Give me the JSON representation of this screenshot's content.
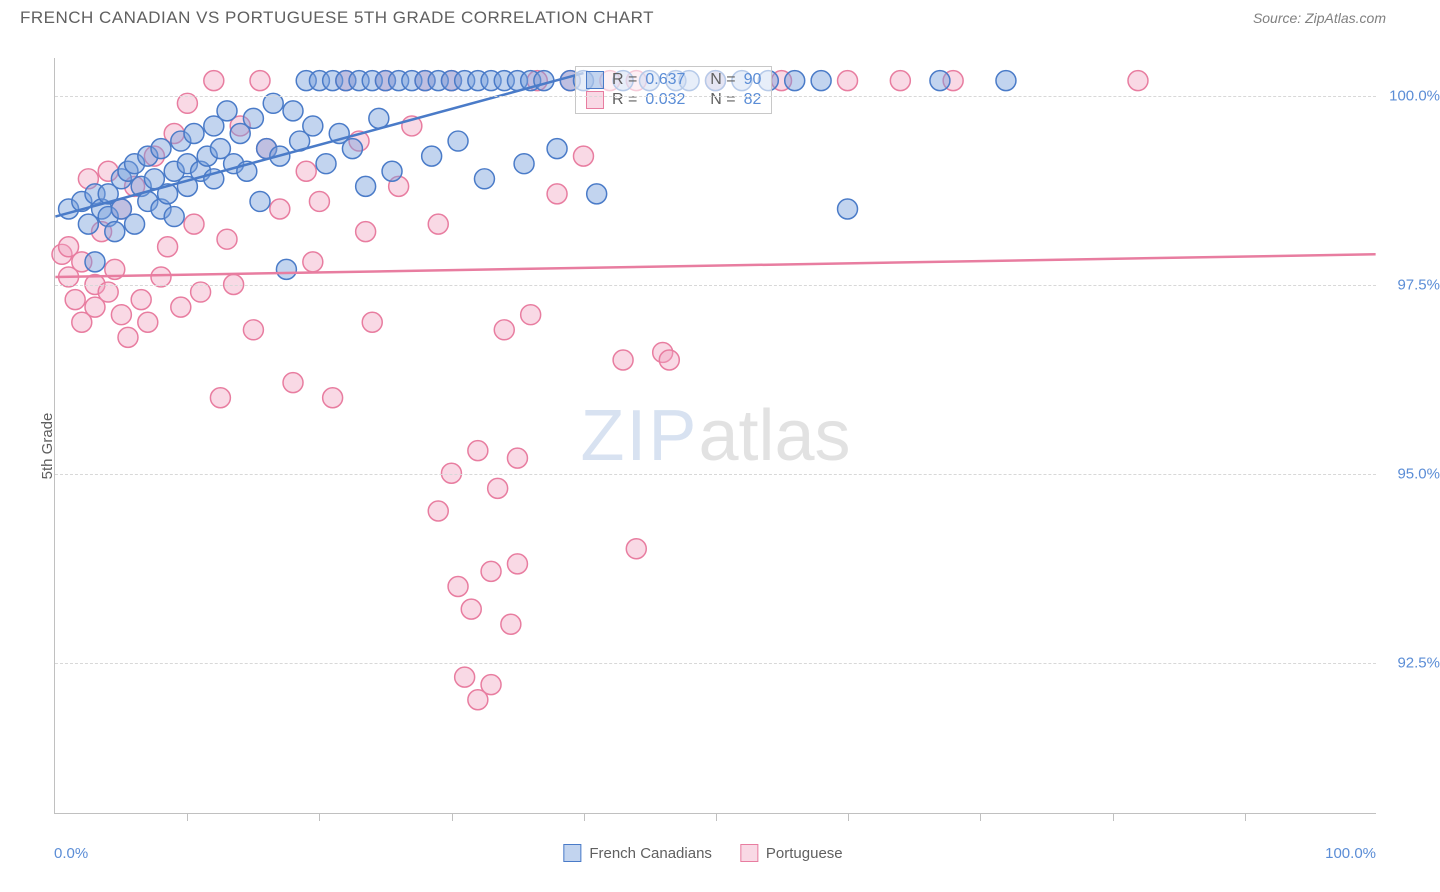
{
  "title": "FRENCH CANADIAN VS PORTUGUESE 5TH GRADE CORRELATION CHART",
  "source": "Source: ZipAtlas.com",
  "ylabel": "5th Grade",
  "xlim": {
    "min_label": "0.0%",
    "max_label": "100.0%",
    "min": 0,
    "max": 100
  },
  "ylim": {
    "min": 90.5,
    "max": 100.5
  },
  "yticks": [
    {
      "value": 100.0,
      "label": "100.0%"
    },
    {
      "value": 97.5,
      "label": "97.5%"
    },
    {
      "value": 95.0,
      "label": "95.0%"
    },
    {
      "value": 92.5,
      "label": "92.5%"
    }
  ],
  "xtick_positions": [
    10,
    20,
    30,
    40,
    50,
    60,
    70,
    80,
    90
  ],
  "colors": {
    "blue_stroke": "#4a7bc8",
    "blue_fill": "rgba(120,160,220,0.45)",
    "pink_stroke": "#e87da0",
    "pink_fill": "rgba(240,160,190,0.40)",
    "grid": "#d8d8d8",
    "axis": "#c0c0c0",
    "text_gray": "#606060",
    "text_blue": "#5b8dd6",
    "bg": "#ffffff"
  },
  "legend_bottom": [
    {
      "label": "French Canadians",
      "color_key": "blue"
    },
    {
      "label": "Portuguese",
      "color_key": "pink"
    }
  ],
  "info_box": {
    "rows": [
      {
        "color_key": "blue",
        "r_label": "R =",
        "r_value": "0.637",
        "n_label": "N =",
        "n_value": "90"
      },
      {
        "color_key": "pink",
        "r_label": "R =",
        "r_value": "0.032",
        "n_label": "N =",
        "n_value": "82"
      }
    ]
  },
  "watermark": {
    "part1": "ZIP",
    "part2": "atlas"
  },
  "marker": {
    "radius": 10,
    "stroke_width": 1.5
  },
  "trend_lines": {
    "blue": {
      "x1": 0,
      "y1": 98.4,
      "x2": 40,
      "y2": 100.3,
      "width": 2.5
    },
    "pink": {
      "x1": 0,
      "y1": 97.6,
      "x2": 100,
      "y2": 97.9,
      "width": 2.5
    }
  },
  "series": {
    "blue": [
      [
        1,
        98.5
      ],
      [
        2,
        98.6
      ],
      [
        2.5,
        98.3
      ],
      [
        3,
        97.8
      ],
      [
        3,
        98.7
      ],
      [
        3.5,
        98.5
      ],
      [
        4,
        98.4
      ],
      [
        4,
        98.7
      ],
      [
        4.5,
        98.2
      ],
      [
        5,
        98.9
      ],
      [
        5,
        98.5
      ],
      [
        5.5,
        99.0
      ],
      [
        6,
        98.3
      ],
      [
        6,
        99.1
      ],
      [
        6.5,
        98.8
      ],
      [
        7,
        98.6
      ],
      [
        7,
        99.2
      ],
      [
        7.5,
        98.9
      ],
      [
        8,
        98.5
      ],
      [
        8,
        99.3
      ],
      [
        8.5,
        98.7
      ],
      [
        9,
        99.0
      ],
      [
        9,
        98.4
      ],
      [
        9.5,
        99.4
      ],
      [
        10,
        99.1
      ],
      [
        10,
        98.8
      ],
      [
        10.5,
        99.5
      ],
      [
        11,
        99.0
      ],
      [
        11.5,
        99.2
      ],
      [
        12,
        98.9
      ],
      [
        12,
        99.6
      ],
      [
        12.5,
        99.3
      ],
      [
        13,
        99.8
      ],
      [
        13.5,
        99.1
      ],
      [
        14,
        99.5
      ],
      [
        14.5,
        99.0
      ],
      [
        15,
        99.7
      ],
      [
        15.5,
        98.6
      ],
      [
        16,
        99.3
      ],
      [
        16.5,
        99.9
      ],
      [
        17,
        99.2
      ],
      [
        17.5,
        97.7
      ],
      [
        18,
        99.8
      ],
      [
        18.5,
        99.4
      ],
      [
        19,
        100.2
      ],
      [
        19.5,
        99.6
      ],
      [
        20,
        100.2
      ],
      [
        20.5,
        99.1
      ],
      [
        21,
        100.2
      ],
      [
        21.5,
        99.5
      ],
      [
        22,
        100.2
      ],
      [
        22.5,
        99.3
      ],
      [
        23,
        100.2
      ],
      [
        23.5,
        98.8
      ],
      [
        24,
        100.2
      ],
      [
        24.5,
        99.7
      ],
      [
        25,
        100.2
      ],
      [
        25.5,
        99.0
      ],
      [
        26,
        100.2
      ],
      [
        27,
        100.2
      ],
      [
        28,
        100.2
      ],
      [
        28.5,
        99.2
      ],
      [
        29,
        100.2
      ],
      [
        30,
        100.2
      ],
      [
        30.5,
        99.4
      ],
      [
        31,
        100.2
      ],
      [
        32,
        100.2
      ],
      [
        32.5,
        98.9
      ],
      [
        33,
        100.2
      ],
      [
        34,
        100.2
      ],
      [
        35,
        100.2
      ],
      [
        35.5,
        99.1
      ],
      [
        36,
        100.2
      ],
      [
        37,
        100.2
      ],
      [
        38,
        99.3
      ],
      [
        39,
        100.2
      ],
      [
        40,
        100.2
      ],
      [
        41,
        98.7
      ],
      [
        43,
        100.2
      ],
      [
        45,
        100.2
      ],
      [
        47,
        100.2
      ],
      [
        48,
        100.2
      ],
      [
        50,
        100.2
      ],
      [
        52,
        100.2
      ],
      [
        54,
        100.2
      ],
      [
        56,
        100.2
      ],
      [
        58,
        100.2
      ],
      [
        60,
        98.5
      ],
      [
        67,
        100.2
      ],
      [
        72,
        100.2
      ]
    ],
    "pink": [
      [
        0.5,
        97.9
      ],
      [
        1,
        97.6
      ],
      [
        1,
        98.0
      ],
      [
        1.5,
        97.3
      ],
      [
        2,
        97.8
      ],
      [
        2,
        97.0
      ],
      [
        2.5,
        98.9
      ],
      [
        3,
        97.5
      ],
      [
        3,
        97.2
      ],
      [
        3.5,
        98.2
      ],
      [
        4,
        99.0
      ],
      [
        4,
        97.4
      ],
      [
        4.5,
        97.7
      ],
      [
        5,
        97.1
      ],
      [
        5,
        98.5
      ],
      [
        5.5,
        96.8
      ],
      [
        6,
        98.8
      ],
      [
        6.5,
        97.3
      ],
      [
        7,
        97.0
      ],
      [
        7.5,
        99.2
      ],
      [
        8,
        97.6
      ],
      [
        8.5,
        98.0
      ],
      [
        9,
        99.5
      ],
      [
        9.5,
        97.2
      ],
      [
        10,
        99.9
      ],
      [
        10.5,
        98.3
      ],
      [
        11,
        97.4
      ],
      [
        12,
        100.2
      ],
      [
        12.5,
        96.0
      ],
      [
        13,
        98.1
      ],
      [
        13.5,
        97.5
      ],
      [
        14,
        99.6
      ],
      [
        15,
        96.9
      ],
      [
        15.5,
        100.2
      ],
      [
        16,
        99.3
      ],
      [
        17,
        98.5
      ],
      [
        18,
        96.2
      ],
      [
        19,
        99.0
      ],
      [
        19.5,
        97.8
      ],
      [
        20,
        98.6
      ],
      [
        21,
        96.0
      ],
      [
        22,
        100.2
      ],
      [
        23,
        99.4
      ],
      [
        23.5,
        98.2
      ],
      [
        24,
        97.0
      ],
      [
        25,
        100.2
      ],
      [
        26,
        98.8
      ],
      [
        27,
        99.6
      ],
      [
        28,
        100.2
      ],
      [
        29,
        98.3
      ],
      [
        29,
        94.5
      ],
      [
        30,
        100.2
      ],
      [
        30,
        95.0
      ],
      [
        30.5,
        93.5
      ],
      [
        31,
        92.3
      ],
      [
        31.5,
        93.2
      ],
      [
        32,
        92.0
      ],
      [
        32,
        95.3
      ],
      [
        33,
        93.7
      ],
      [
        33,
        92.2
      ],
      [
        33.5,
        94.8
      ],
      [
        34,
        96.9
      ],
      [
        34.5,
        93.0
      ],
      [
        35,
        95.2
      ],
      [
        35,
        93.8
      ],
      [
        36,
        97.1
      ],
      [
        36.5,
        100.2
      ],
      [
        38,
        98.7
      ],
      [
        39,
        100.2
      ],
      [
        40,
        99.2
      ],
      [
        42,
        100.2
      ],
      [
        43,
        96.5
      ],
      [
        44,
        100.2
      ],
      [
        44,
        94.0
      ],
      [
        46,
        96.6
      ],
      [
        46.5,
        96.5
      ],
      [
        50,
        100.2
      ],
      [
        55,
        100.2
      ],
      [
        60,
        100.2
      ],
      [
        64,
        100.2
      ],
      [
        68,
        100.2
      ],
      [
        82,
        100.2
      ]
    ]
  }
}
